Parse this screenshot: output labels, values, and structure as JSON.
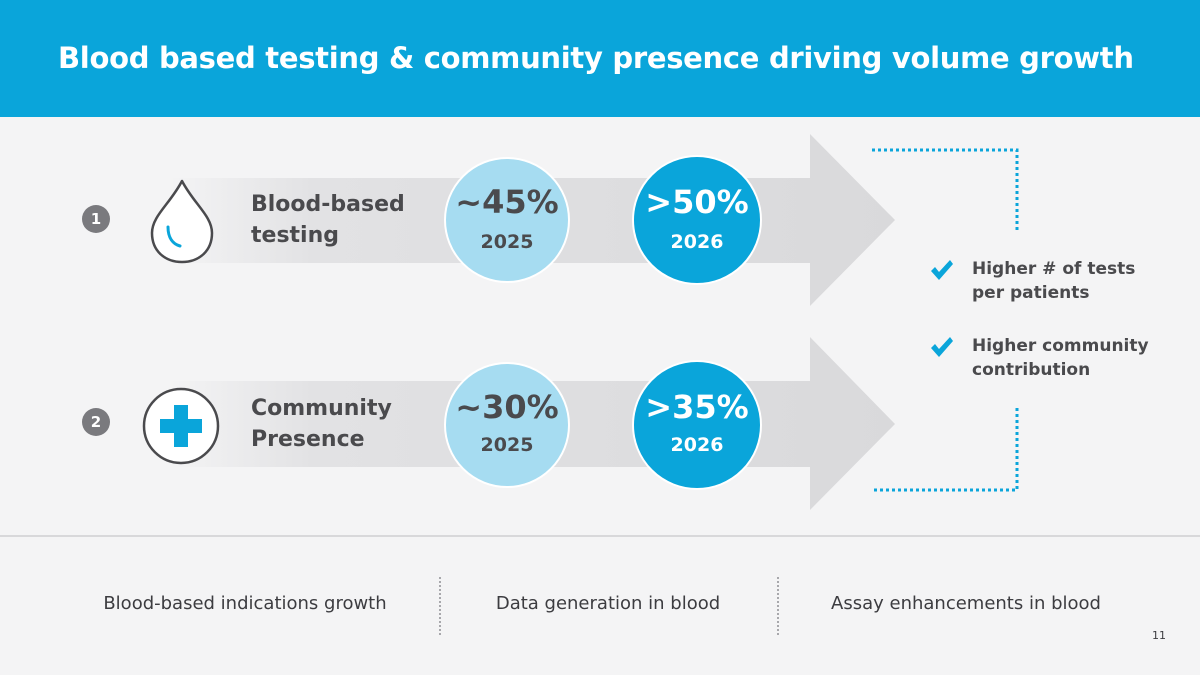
{
  "header": {
    "title": "Blood based testing & community presence driving volume growth"
  },
  "rows": [
    {
      "number": "1",
      "icon": "blood-drop-icon",
      "label_line1": "Blood-based",
      "label_line2": "testing",
      "circle_2025": {
        "value": "~45%",
        "year": "2025"
      },
      "circle_2026": {
        "value": ">50%",
        "year": "2026"
      }
    },
    {
      "number": "2",
      "icon": "medical-cross-icon",
      "label_line1": "Community",
      "label_line2": "Presence",
      "circle_2025": {
        "value": "~30%",
        "year": "2025"
      },
      "circle_2026": {
        "value": ">35%",
        "year": "2026"
      }
    }
  ],
  "benefits": [
    {
      "icon": "checkmark-icon",
      "line1": "Higher # of tests",
      "line2": "per patients"
    },
    {
      "icon": "checkmark-icon",
      "line1": "Higher community",
      "line2": "contribution"
    }
  ],
  "footer": {
    "items": [
      "Blood-based indications growth",
      "Data generation in blood",
      "Assay enhancements in blood"
    ]
  },
  "page_number": "11",
  "colors": {
    "brand_blue": "#0aa5da",
    "light_blue": "#a6dcf1",
    "text_dark": "#4a4a4d",
    "arrow_gray": "#dedee0",
    "badge_gray": "#7a7a7e"
  }
}
